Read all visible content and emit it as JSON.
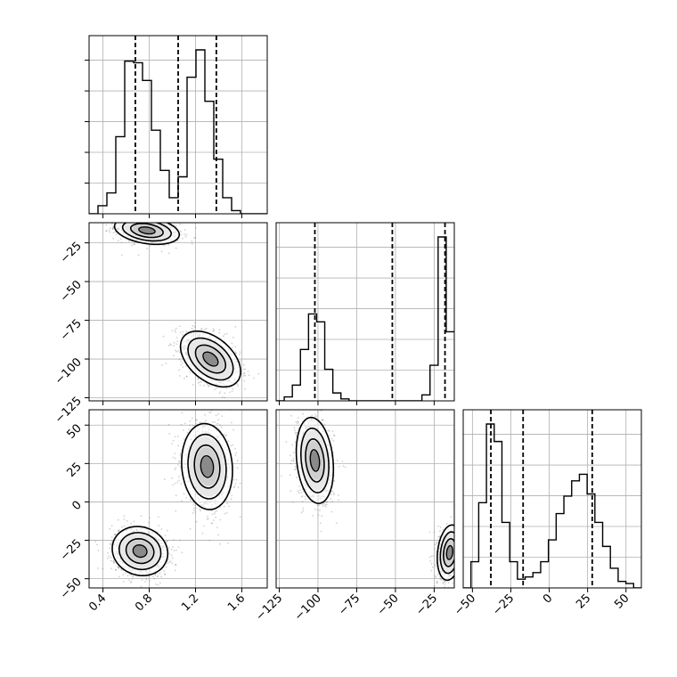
{
  "chart_data": {
    "type": "corner",
    "grid": true,
    "colors": {
      "line": "#000000",
      "grid": "#b0b0b0",
      "points": "#7a7a7a"
    },
    "params": [
      {
        "range": [
          0.28,
          1.82
        ],
        "ticks": [
          0.4,
          0.8,
          1.2,
          1.6
        ],
        "tick_labels": [
          "0.4",
          "0.8",
          "1.2",
          "1.6"
        ],
        "quantiles": [
          0.68,
          1.05,
          1.38
        ]
      },
      {
        "range": [
          -127,
          -12
        ],
        "ticks": [
          -125,
          -100,
          -75,
          -50,
          -25
        ],
        "tick_labels": [
          "−125",
          "−100",
          "−75",
          "−50",
          "−25"
        ],
        "quantiles": [
          -102,
          -52,
          -18
        ]
      },
      {
        "range": [
          -56,
          60
        ],
        "ticks": [
          -50,
          -25,
          0,
          25,
          50
        ],
        "tick_labels": [
          "−50",
          "−25",
          "0",
          "25",
          "50"
        ],
        "quantiles": [
          -38,
          -17,
          28
        ]
      }
    ],
    "hist1d": [
      {
        "edges": [
          0.28,
          1.82
        ],
        "counts": [
          0,
          0.5,
          1.3,
          4.8,
          9.5,
          9.4,
          8.3,
          5.2,
          2.7,
          1.0,
          2.3,
          8.5,
          10.2,
          7.0,
          3.4,
          1.0,
          0.2,
          0,
          0,
          0
        ]
      },
      {
        "edges": [
          -127,
          -12
        ],
        "counts": [
          0,
          0.2,
          0.8,
          2.6,
          4.4,
          4.0,
          1.6,
          0.4,
          0.1,
          0,
          0,
          0,
          0,
          0,
          0,
          0,
          0,
          0,
          0.3,
          1.8,
          8.3,
          3.5
        ]
      },
      {
        "edges": [
          -56,
          60
        ],
        "counts": [
          0,
          1.2,
          3.9,
          7.5,
          6.7,
          3.0,
          1.2,
          0.4,
          0.5,
          0.7,
          1.2,
          2.2,
          3.4,
          4.2,
          4.9,
          5.2,
          4.3,
          3.0,
          1.9,
          0.9,
          0.3,
          0.2,
          0
        ]
      }
    ],
    "clusters2d": {
      "p1_p0": [
        {
          "center": [
            0.78,
            -17
          ],
          "sigma": [
            0.14,
            4.5
          ],
          "rho": -0.3,
          "n": 750
        },
        {
          "center": [
            1.33,
            -100
          ],
          "sigma": [
            0.13,
            9
          ],
          "rho": -0.45,
          "n": 900
        }
      ],
      "p2_p0": [
        {
          "center": [
            0.72,
            -32
          ],
          "sigma": [
            0.12,
            8
          ],
          "rho": -0.1,
          "n": 850
        },
        {
          "center": [
            1.3,
            23
          ],
          "sigma": [
            0.11,
            14
          ],
          "rho": -0.1,
          "n": 900
        }
      ],
      "p2_p1": [
        {
          "center": [
            -102,
            27
          ],
          "sigma": [
            6,
            14
          ],
          "rho": -0.2,
          "n": 900
        },
        {
          "center": [
            -15,
            -33
          ],
          "sigma": [
            4,
            9
          ],
          "rho": 0.2,
          "n": 700
        }
      ]
    }
  }
}
